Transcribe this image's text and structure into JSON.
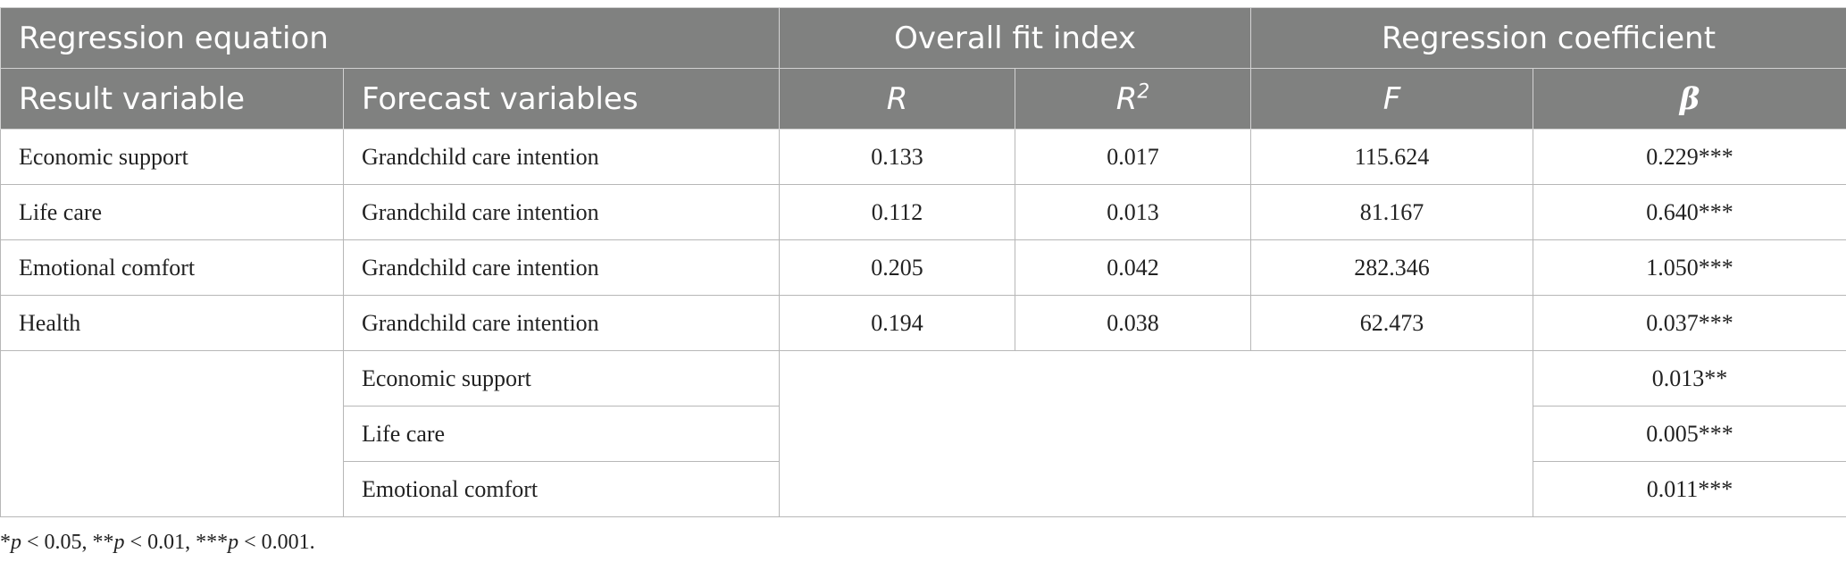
{
  "header": {
    "group_row": {
      "regression_equation": "Regression equation",
      "overall_fit_index": "Overall fit index",
      "regression_coefficient": "Regression coefficient"
    },
    "column_row": {
      "result_variable": "Result variable",
      "forecast_variables": "Forecast variables",
      "r": "R",
      "r2_base": "R",
      "r2_exp": "2",
      "f": "F",
      "beta": "β"
    }
  },
  "rows": [
    {
      "result": "Economic support",
      "forecast": "Grandchild care intention",
      "r": "0.133",
      "r2": "0.017",
      "f": "115.624",
      "beta": "0.229***"
    },
    {
      "result": "Life care",
      "forecast": "Grandchild care intention",
      "r": "0.112",
      "r2": "0.013",
      "f": "81.167",
      "beta": "0.640***"
    },
    {
      "result": "Emotional comfort",
      "forecast": "Grandchild care intention",
      "r": "0.205",
      "r2": "0.042",
      "f": "282.346",
      "beta": "1.050***"
    },
    {
      "result": "Health",
      "forecast": "Grandchild care intention",
      "r": "0.194",
      "r2": "0.038",
      "f": "62.473",
      "beta": "0.037***"
    }
  ],
  "health_mediators": [
    {
      "forecast": "Economic support",
      "beta": "0.013**"
    },
    {
      "forecast": "Life care",
      "beta": "0.005***"
    },
    {
      "forecast": "Emotional comfort",
      "beta": "0.011***"
    }
  ],
  "footnote": {
    "s1": "*",
    "p1": "p",
    "t1": " < 0.05, **",
    "p2": "p",
    "t2": " < 0.01, ***",
    "p3": "p",
    "t3": " < 0.001."
  }
}
